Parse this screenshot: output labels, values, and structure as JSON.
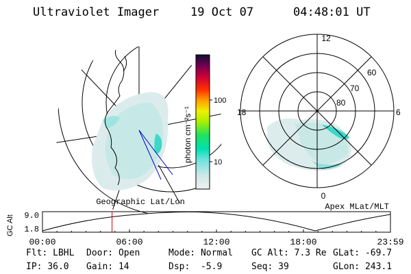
{
  "header": {
    "instrument": "Ultraviolet Imager",
    "date": "19 Oct 07",
    "time": "04:48:01 UT"
  },
  "colorbar": {
    "unit_label": "photon cm⁻²s⁻¹",
    "ticks": [
      "100",
      "10"
    ],
    "scale": "log"
  },
  "geo_map": {
    "label": "Geographic Lat/Lon"
  },
  "apex_map": {
    "label": "Apex MLat/MLT",
    "mlt_labels": {
      "top": "12",
      "left": "18",
      "right": "6",
      "bottom": "0"
    },
    "mlat_labels": [
      "60",
      "70",
      "80"
    ]
  },
  "orbit_plot": {
    "ylabel": "GC Alt",
    "ytick_top": "9.0",
    "ytick_bottom": "1.8",
    "xticks": [
      "00:00",
      "06:00",
      "12:00",
      "18:00",
      "23:59"
    ],
    "current_time_marker_hours": 4.8
  },
  "status": {
    "row1": [
      {
        "label": "Flt:",
        "value": "LBHL"
      },
      {
        "label": "Door:",
        "value": "Open"
      },
      {
        "label": "Mode:",
        "value": "Normal"
      },
      {
        "label": "GC Alt:",
        "value": "7.3 Re"
      },
      {
        "label": "GLat:",
        "value": "-69.7"
      }
    ],
    "row2": [
      {
        "label": "IP:",
        "value": "36.0"
      },
      {
        "label": "Gain:",
        "value": "14"
      },
      {
        "label": "Dsp:",
        "value": "-5.9"
      },
      {
        "label": "Seq:",
        "value": "39"
      },
      {
        "label": "GLon:",
        "value": "243.1"
      }
    ]
  },
  "colors": {
    "marker": "#cc0000",
    "geo_line": "#0000cc",
    "aurora_light": "#d8ecec",
    "aurora_mid": "#8fe0dc",
    "aurora_bright": "#3cd8c8"
  }
}
